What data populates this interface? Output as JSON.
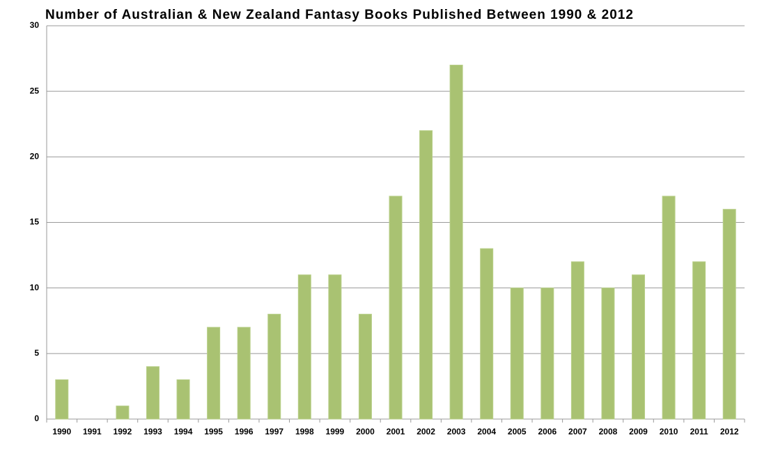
{
  "chart_data": {
    "type": "bar",
    "title": "Number of Australian & New Zealand Fantasy Books Published Between 1990 & 2012",
    "categories": [
      "1990",
      "1991",
      "1992",
      "1993",
      "1994",
      "1995",
      "1996",
      "1997",
      "1998",
      "1999",
      "2000",
      "2001",
      "2002",
      "2003",
      "2004",
      "2005",
      "2006",
      "2007",
      "2008",
      "2009",
      "2010",
      "2011",
      "2012"
    ],
    "values": [
      3,
      0,
      1,
      4,
      3,
      7,
      7,
      8,
      11,
      11,
      8,
      17,
      22,
      27,
      13,
      10,
      10,
      12,
      10,
      11,
      17,
      12,
      16
    ],
    "color": "#a9c272",
    "ylim": [
      0,
      30
    ],
    "yticks": [
      0,
      5,
      10,
      15,
      20,
      25,
      30
    ],
    "grid": true
  }
}
